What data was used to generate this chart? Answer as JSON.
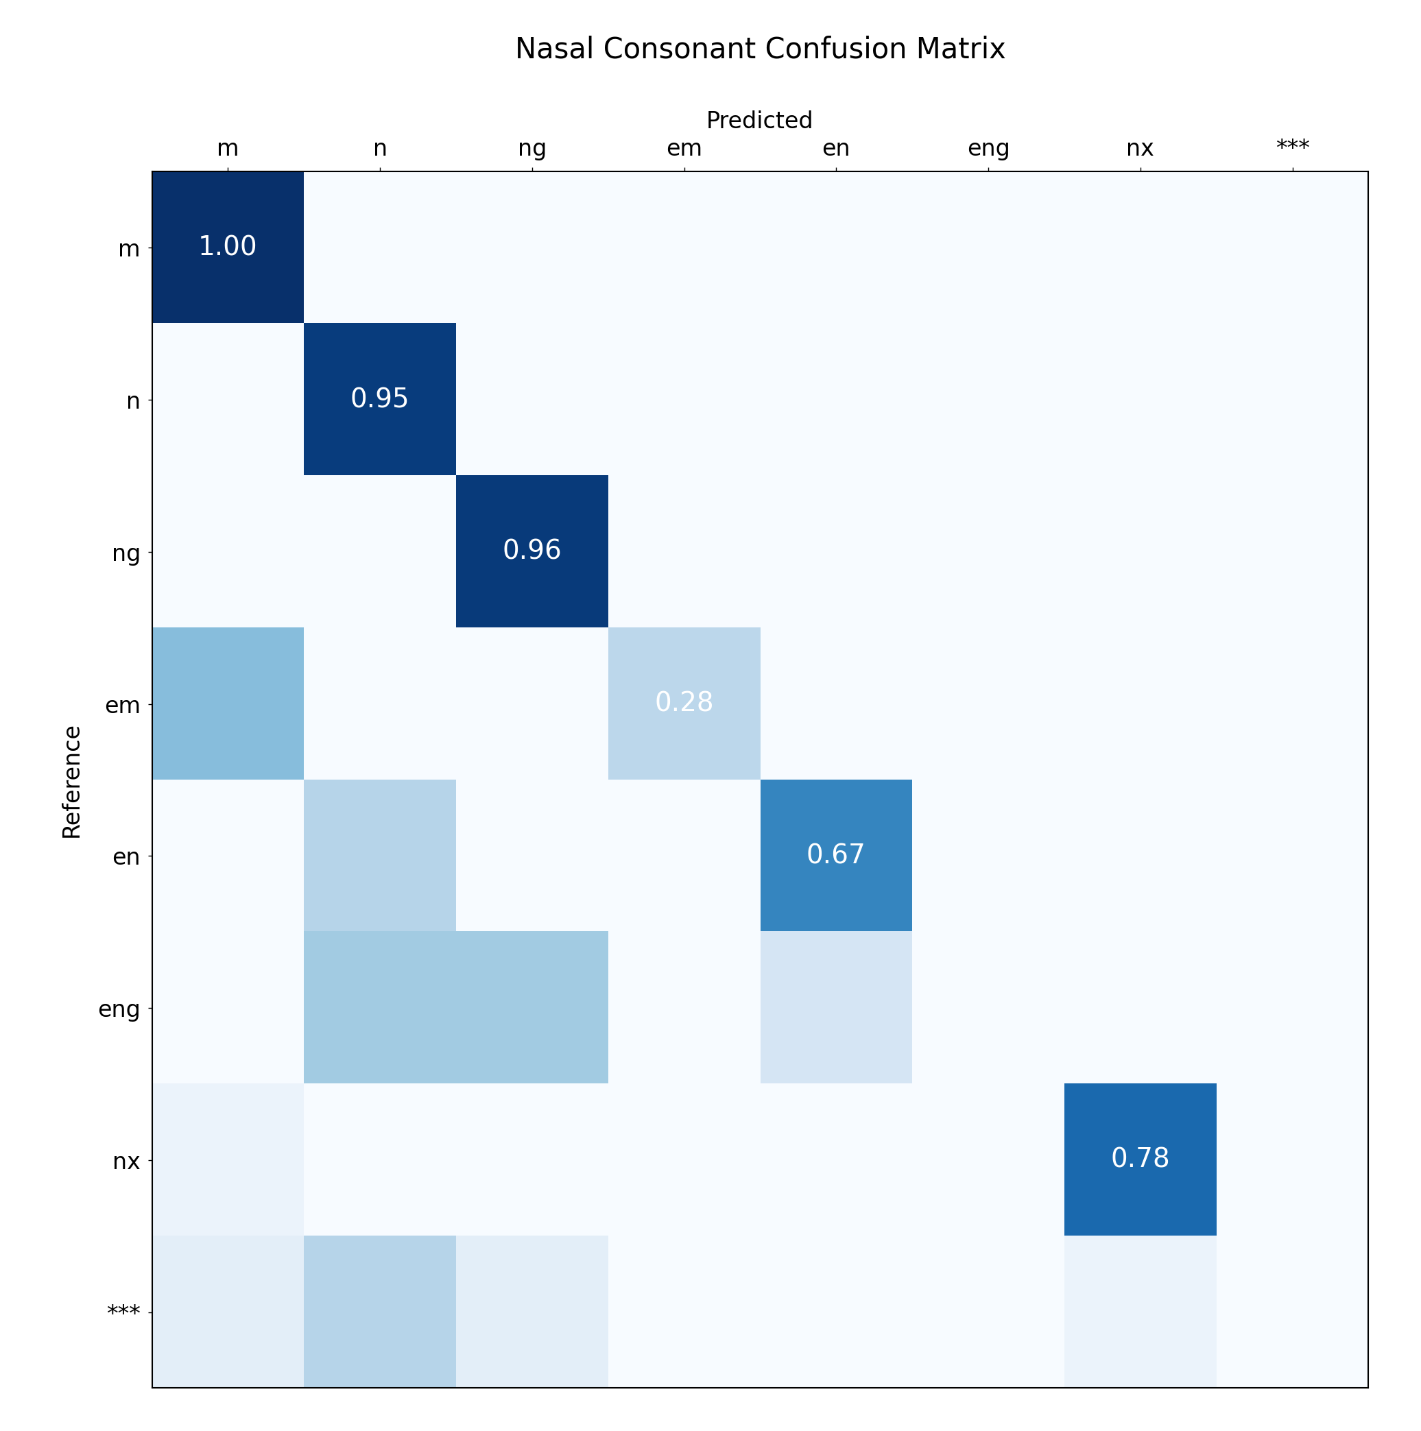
{
  "title": "Nasal Consonant Confusion Matrix",
  "xlabel": "Predicted",
  "ylabel": "Reference",
  "labels": [
    "m",
    "n",
    "ng",
    "em",
    "en",
    "eng",
    "nx",
    "***"
  ],
  "matrix": [
    [
      1.0,
      0.0,
      0.0,
      0.0,
      0.0,
      0.0,
      0.0,
      0.0
    ],
    [
      0.0,
      0.95,
      0.0,
      0.0,
      0.0,
      0.0,
      0.0,
      0.0
    ],
    [
      0.0,
      0.0,
      0.96,
      0.0,
      0.0,
      0.0,
      0.0,
      0.0
    ],
    [
      0.43,
      0.0,
      0.0,
      0.28,
      0.0,
      0.0,
      0.0,
      0.0
    ],
    [
      0.0,
      0.3,
      0.0,
      0.0,
      0.67,
      0.0,
      0.0,
      0.0
    ],
    [
      0.0,
      0.36,
      0.36,
      0.0,
      0.17,
      0.0,
      0.0,
      0.0
    ],
    [
      0.06,
      0.0,
      0.0,
      0.0,
      0.0,
      0.0,
      0.78,
      0.0
    ],
    [
      0.1,
      0.3,
      0.1,
      0.0,
      0.0,
      0.0,
      0.06,
      0.0
    ]
  ],
  "annotated_cells": [
    [
      0,
      0,
      "1.00"
    ],
    [
      1,
      1,
      "0.95"
    ],
    [
      2,
      2,
      "0.96"
    ],
    [
      3,
      3,
      "0.28"
    ],
    [
      4,
      4,
      "0.67"
    ],
    [
      6,
      6,
      "0.78"
    ]
  ],
  "cmap": "Blues",
  "vmin": 0.0,
  "vmax": 1.0,
  "title_fontsize": 30,
  "tick_fontsize": 24,
  "annot_fontsize": 28,
  "xlabel_fontsize": 24,
  "ylabel_fontsize": 24,
  "background_color": "#dce9f5"
}
